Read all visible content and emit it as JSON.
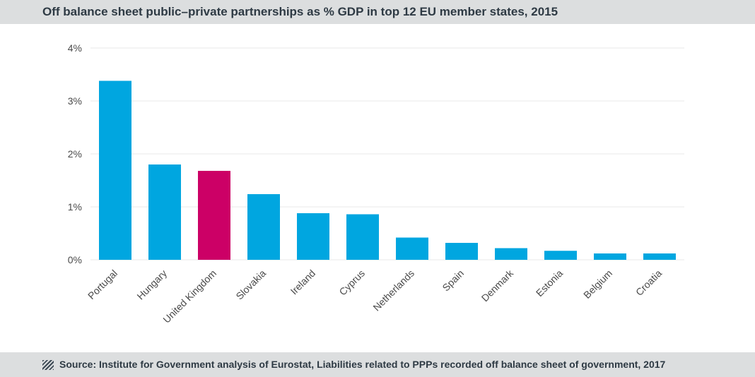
{
  "title": "Off balance sheet public–private partnerships as % GDP in top 12 EU member states, 2015",
  "source": "Source: Institute for Government analysis of Eurostat, Liabilities related to PPPs recorded off balance sheet of government, 2017",
  "footer_icon": "striped-square-icon",
  "colors": {
    "default_bar": "#00a6e0",
    "highlight_bar": "#cc0066",
    "grid": "#e8e8e8"
  },
  "chart_data": {
    "type": "bar",
    "title": "Off balance sheet public–private partnerships as % GDP in top 12 EU member states, 2015",
    "xlabel": "",
    "ylabel": "",
    "categories": [
      "Portugal",
      "Hungary",
      "United Kingdom",
      "Slovakia",
      "Ireland",
      "Cyprus",
      "Netherlands",
      "Spain",
      "Denmark",
      "Estonia",
      "Belgium",
      "Croatia"
    ],
    "values": [
      3.38,
      1.8,
      1.68,
      1.24,
      0.88,
      0.86,
      0.42,
      0.32,
      0.22,
      0.17,
      0.12,
      0.12
    ],
    "highlight": [
      "United Kingdom"
    ],
    "ylim": [
      0,
      4
    ],
    "yticks": [
      0,
      1,
      2,
      3,
      4
    ],
    "ytick_labels": [
      "0%",
      "1%",
      "2%",
      "3%",
      "4%"
    ],
    "grid": true,
    "legend": "none"
  }
}
